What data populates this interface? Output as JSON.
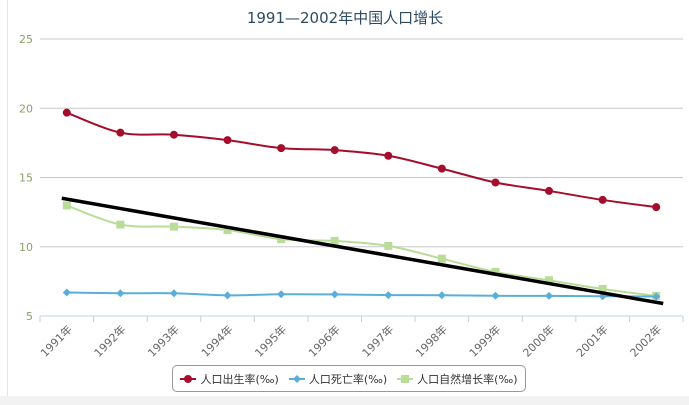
{
  "chart_data": {
    "type": "line",
    "title": "1991—2002年中国人口增长",
    "xlabel": "",
    "ylabel": "",
    "categories": [
      "1991年",
      "1992年",
      "1993年",
      "1994年",
      "1995年",
      "1996年",
      "1997年",
      "1998年",
      "1999年",
      "2000年",
      "2001年",
      "2002年"
    ],
    "ylim": [
      5,
      25
    ],
    "yticks": [
      "5",
      "10",
      "15",
      "20",
      "25"
    ],
    "grid": true,
    "legend_position": "bottom-center",
    "series": [
      {
        "name": "人口出生率(‰)",
        "color": "#a50d2d",
        "marker": "circle",
        "values": [
          19.68,
          18.24,
          18.09,
          17.7,
          17.12,
          16.98,
          16.57,
          15.64,
          14.64,
          14.03,
          13.38,
          12.86
        ]
      },
      {
        "name": "人口死亡率(‰)",
        "color": "#5aafd8",
        "marker": "diamond",
        "values": [
          6.7,
          6.64,
          6.64,
          6.49,
          6.57,
          6.56,
          6.51,
          6.5,
          6.46,
          6.45,
          6.43,
          6.41
        ]
      },
      {
        "name": "人口自然增长率(‰)",
        "color": "#b9dc99",
        "marker": "square",
        "values": [
          12.98,
          11.6,
          11.45,
          11.21,
          10.55,
          10.42,
          10.06,
          9.14,
          8.18,
          7.58,
          6.95,
          6.45
        ]
      }
    ],
    "annotations": [
      {
        "type": "trend-line",
        "color": "#000000",
        "from": {
          "x": "1991年",
          "y": 13.5
        },
        "to": {
          "x": "2002年",
          "y": 5.9
        }
      }
    ]
  }
}
